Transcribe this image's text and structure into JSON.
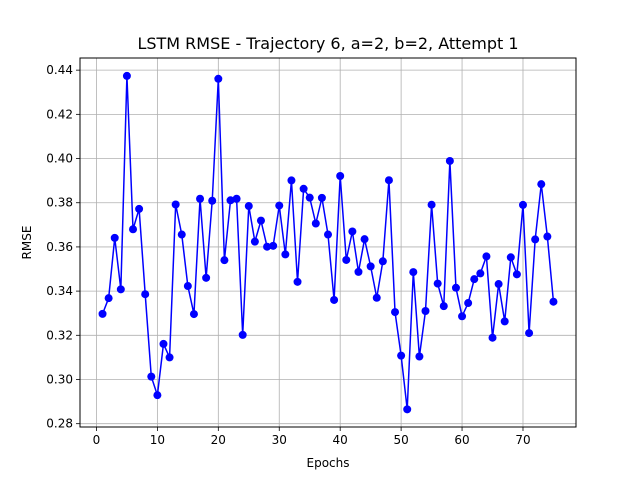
{
  "chart_data": {
    "type": "line",
    "title": "LSTM RMSE - Trajectory 6, a=2, b=2, Attempt 1",
    "xlabel": "Epochs",
    "ylabel": "RMSE",
    "xlim": [
      -2.7,
      78.7
    ],
    "ylim": [
      0.2785,
      0.4455
    ],
    "x_ticks": [
      0,
      10,
      20,
      30,
      40,
      50,
      60,
      70
    ],
    "y_ticks": [
      0.28,
      0.3,
      0.32,
      0.34,
      0.36,
      0.38,
      0.4,
      0.42,
      0.44
    ],
    "x_tick_labels": [
      "0",
      "10",
      "20",
      "30",
      "40",
      "50",
      "60",
      "70"
    ],
    "y_tick_labels": [
      "0.28",
      "0.30",
      "0.32",
      "0.34",
      "0.36",
      "0.38",
      "0.40",
      "0.42",
      "0.44"
    ],
    "grid": true,
    "legend": false,
    "color": "#0000ff",
    "series": [
      {
        "x": [
          1,
          2,
          3,
          4,
          5,
          6,
          7,
          8,
          9,
          10,
          11,
          12,
          13,
          14,
          15,
          16,
          17,
          18,
          19,
          20,
          21,
          22,
          23,
          24,
          25,
          26,
          27,
          28,
          29,
          30,
          31,
          32,
          33,
          34,
          35,
          36,
          37,
          38,
          39,
          40,
          41,
          42,
          43,
          44,
          45,
          46,
          47,
          48,
          49,
          50,
          51,
          52,
          53,
          54,
          55,
          56,
          57,
          58,
          59,
          60,
          61,
          62,
          63,
          64,
          65,
          66,
          67,
          68,
          69,
          70,
          71,
          72,
          73,
          74,
          75
        ],
        "values": [
          0.3297,
          0.3368,
          0.3641,
          0.3408,
          0.4374,
          0.368,
          0.3772,
          0.3386,
          0.3013,
          0.2929,
          0.3161,
          0.31,
          0.3792,
          0.3656,
          0.3423,
          0.3296,
          0.3818,
          0.346,
          0.3809,
          0.4361,
          0.354,
          0.3811,
          0.3818,
          0.3202,
          0.3785,
          0.3624,
          0.3719,
          0.3601,
          0.3605,
          0.3787,
          0.3566,
          0.3901,
          0.3442,
          0.3863,
          0.3823,
          0.3706,
          0.3822,
          0.3656,
          0.336,
          0.3921,
          0.3541,
          0.367,
          0.3487,
          0.3635,
          0.3512,
          0.337,
          0.3535,
          0.3902,
          0.3305,
          0.3108,
          0.2865,
          0.3486,
          0.3104,
          0.331,
          0.3791,
          0.3434,
          0.3332,
          0.3989,
          0.3415,
          0.3286,
          0.3346,
          0.3454,
          0.348,
          0.3557,
          0.3189,
          0.3432,
          0.3263,
          0.3553,
          0.3476,
          0.379,
          0.321,
          0.3634,
          0.3884,
          0.3647,
          0.3352
        ]
      }
    ]
  }
}
